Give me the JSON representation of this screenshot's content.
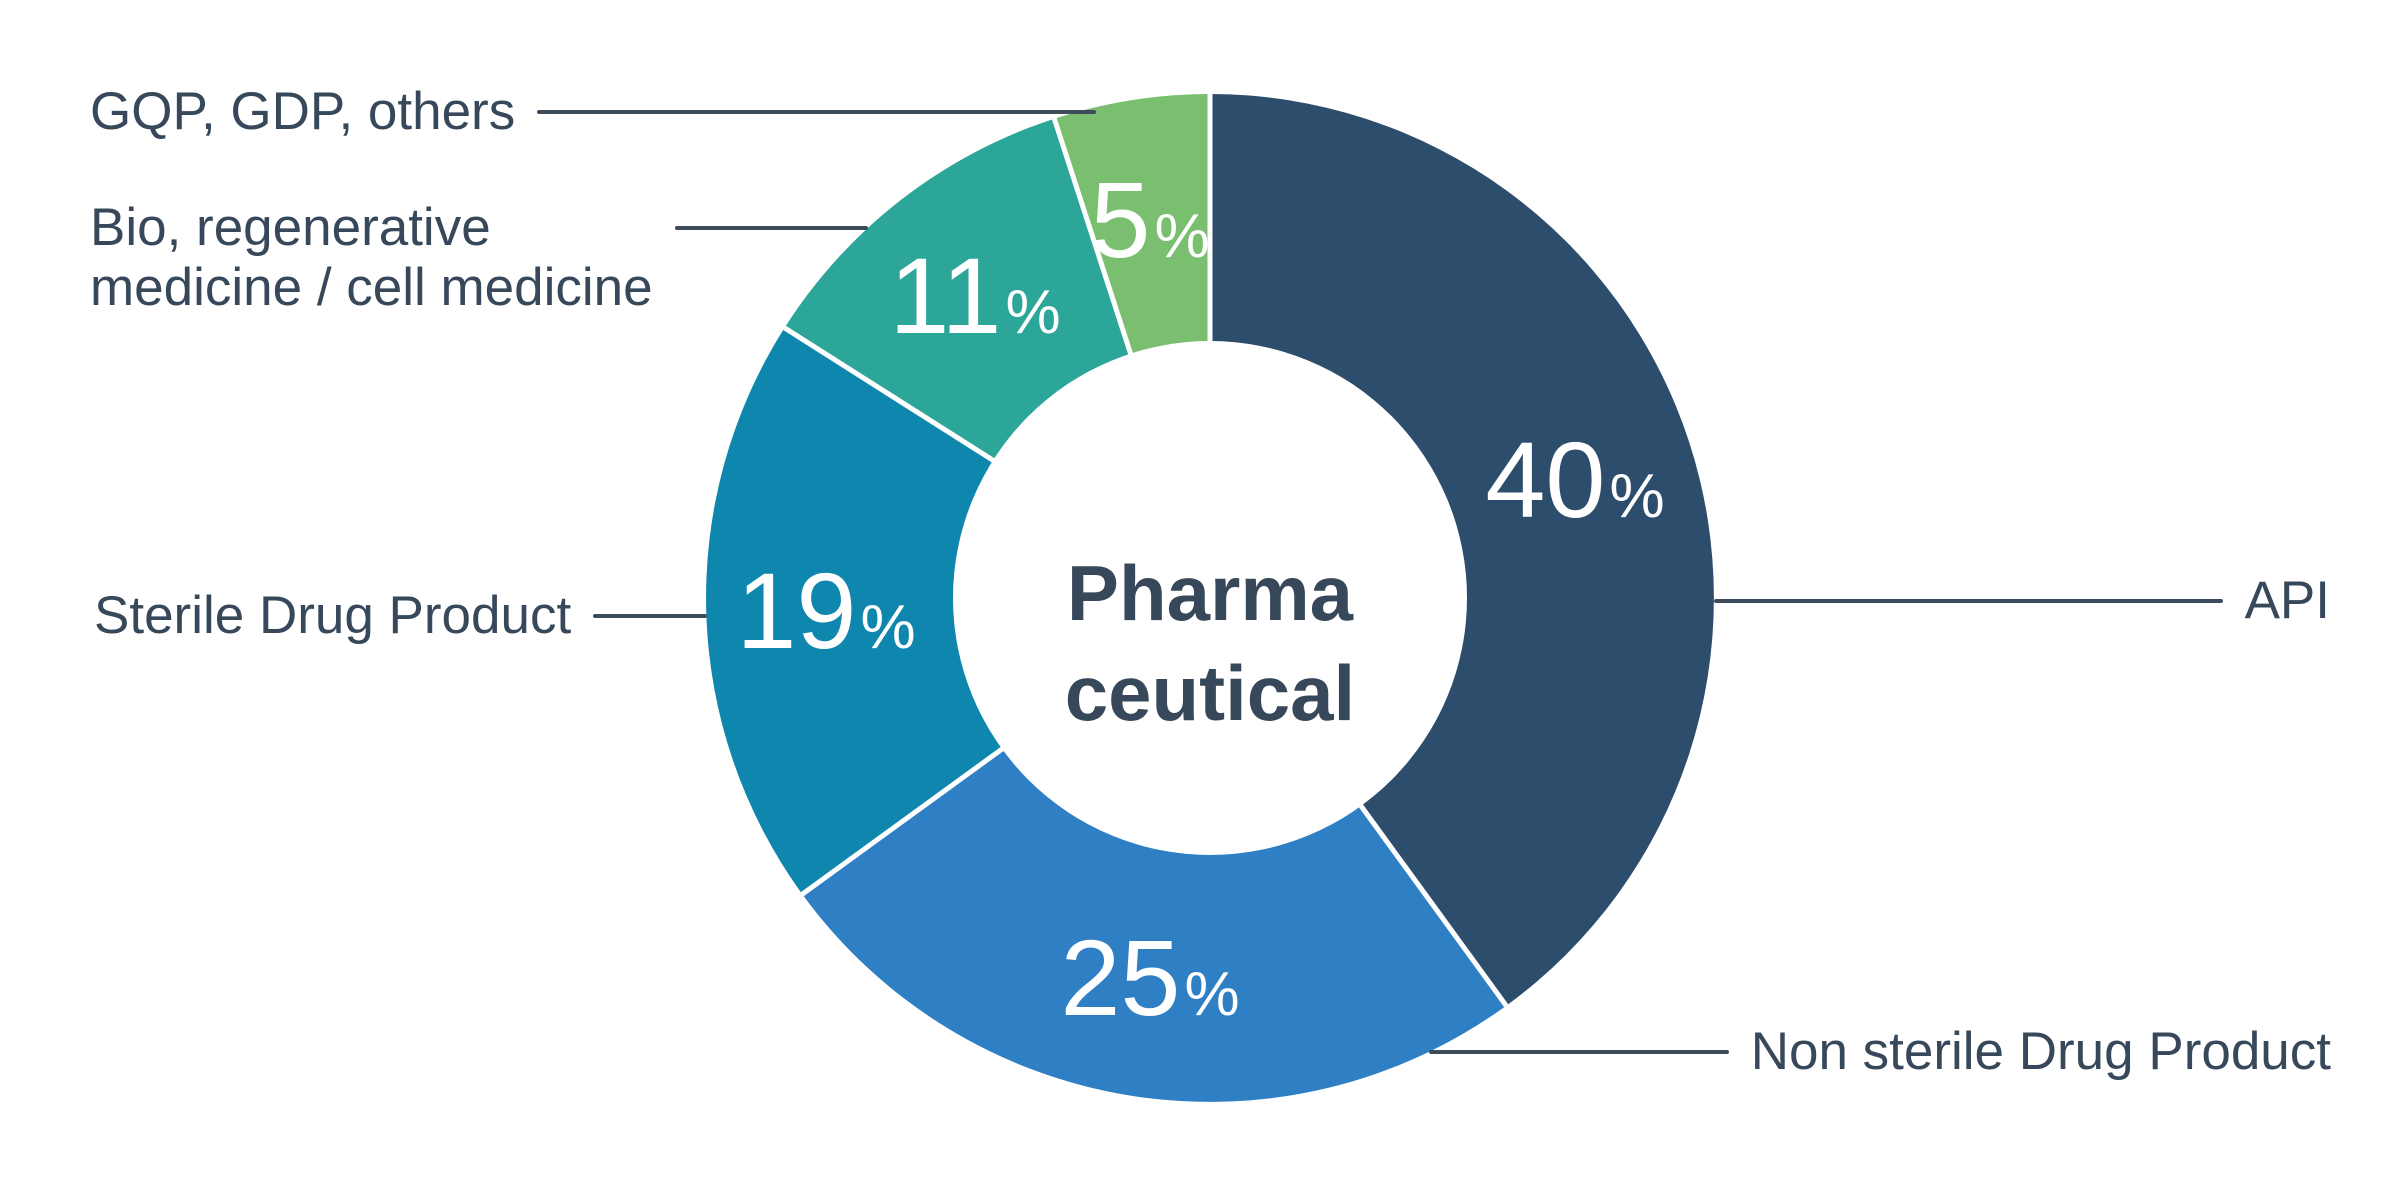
{
  "chart_data": {
    "type": "pie",
    "subtype": "donut",
    "title": "Pharmaceutical",
    "center_label_lines": [
      "Pharma",
      "ceutical"
    ],
    "unit_suffix": "%",
    "direction": "clockwise",
    "start_angle_deg": 0,
    "legend_position": "callout-labels-with-leader-lines",
    "grid": false,
    "segments": [
      {
        "label": "API",
        "value": 40,
        "color": "#2D4D6C"
      },
      {
        "label": "Non sterile Drug Product",
        "value": 25,
        "color": "#2F7FC4"
      },
      {
        "label": "Sterile Drug Product",
        "value": 19,
        "color": "#0E86AE"
      },
      {
        "label": "Bio, regenerative medicine / cell medicine",
        "value": 11,
        "color": "#2BA699"
      },
      {
        "label": "GQP, GDP, others",
        "value": 5,
        "color": "#7ABE70"
      }
    ],
    "colors": {
      "hole": "#FFFFFF",
      "separator": "#FFFFFF",
      "value_labels": "#FFFFFF",
      "center_text": "#36485A",
      "callout_text": "#36485A",
      "leader_line": "#3D4C5A",
      "background": "#FFFFFF"
    }
  },
  "callouts": {
    "gqp": {
      "lines": [
        "GQP, GDP, others"
      ]
    },
    "bio": {
      "lines": [
        "Bio, regenerative",
        "medicine / cell medicine"
      ]
    },
    "sterile": {
      "lines": [
        "Sterile Drug Product"
      ]
    },
    "api": {
      "lines": [
        "API"
      ]
    },
    "nonsterile": {
      "lines": [
        "Non sterile Drug Product"
      ]
    }
  }
}
